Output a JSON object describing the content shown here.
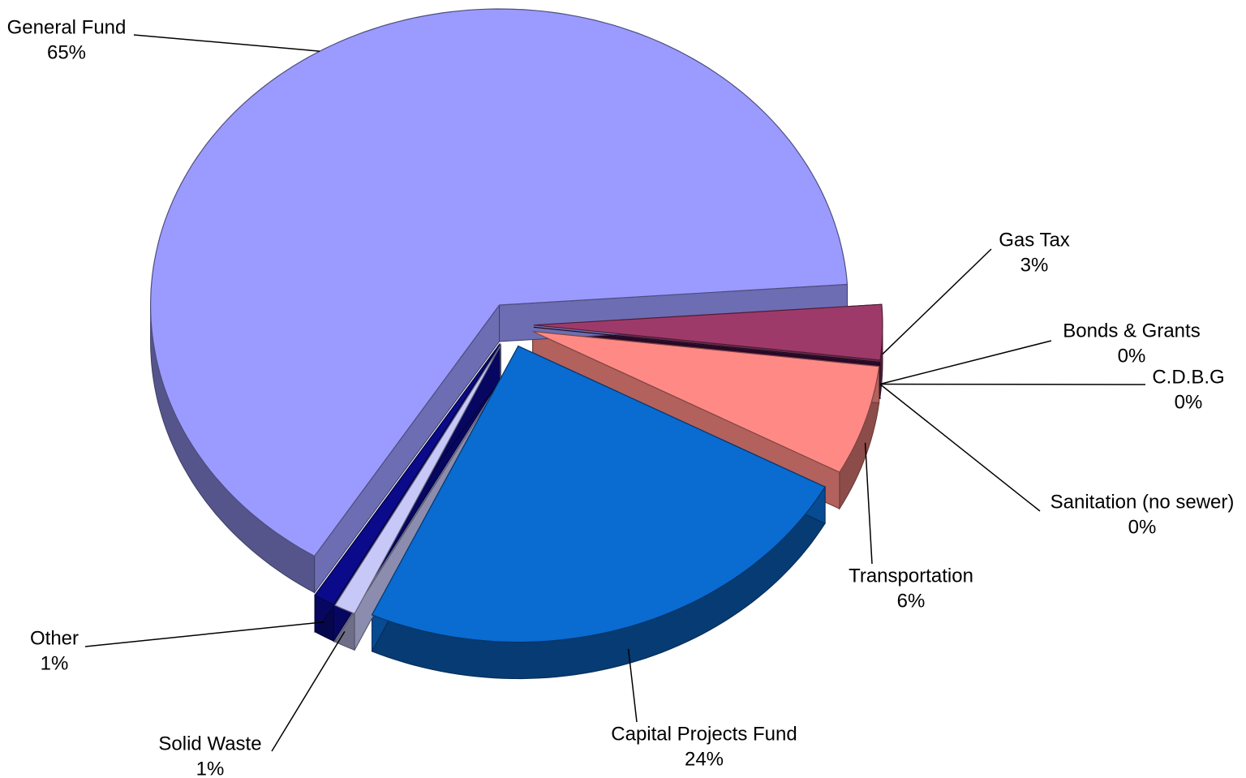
{
  "chart_data": {
    "type": "pie",
    "categories": [
      "Gas Tax",
      "Bonds & Grants",
      "C.D.B.G",
      "Sanitation (no sewer)",
      "Transportation",
      "Capital Projects Fund",
      "Solid Waste",
      "Other",
      "General Fund"
    ],
    "values": [
      3,
      0,
      0,
      0,
      6,
      24,
      1,
      1,
      65
    ],
    "value_labels": [
      "3%",
      "0%",
      "0%",
      "0%",
      "6%",
      "24%",
      "1%",
      "1%",
      "65%"
    ],
    "colors": [
      "#9e3a6a",
      "#c8c8a0",
      "#d0f0f8",
      "#3a0a3a",
      "#ff8a85",
      "#0a6bd1",
      "#c8c8f8",
      "#0a0a8a",
      "#9b9bff"
    ]
  }
}
